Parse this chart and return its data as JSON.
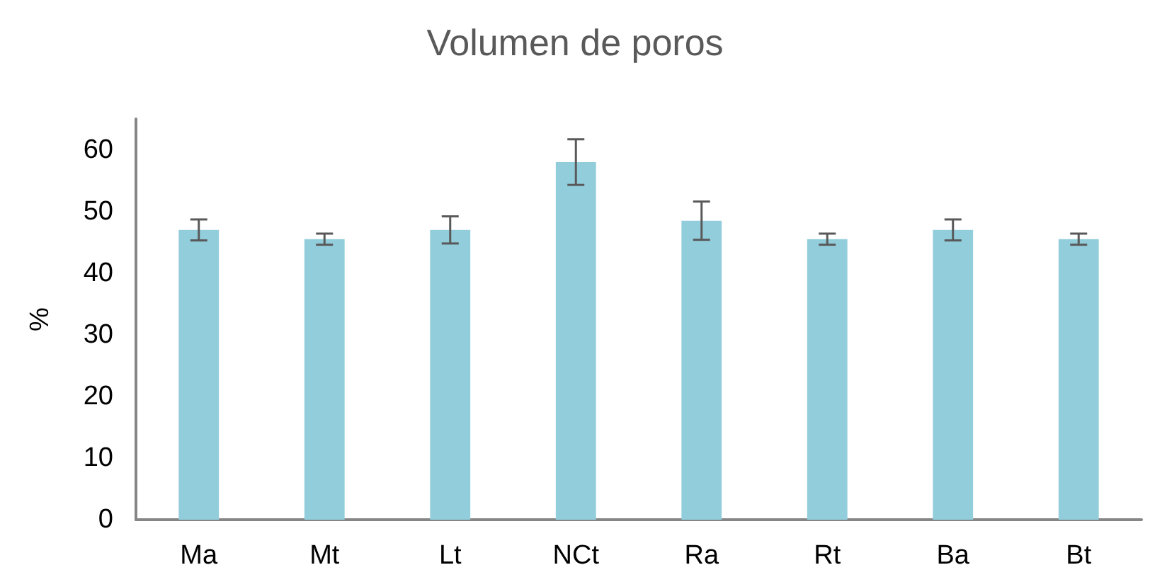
{
  "chart_data": {
    "type": "bar",
    "title": "Volumen de poros",
    "ylabel": "%",
    "categories": [
      "Ma",
      "Mt",
      "Lt",
      "NCt",
      "Ra",
      "Rt",
      "Ba",
      "Bt"
    ],
    "values": [
      47,
      45.5,
      47,
      58,
      48.5,
      45.5,
      47,
      45.5
    ],
    "errors": [
      1.7,
      0.9,
      2.2,
      3.7,
      3.1,
      0.9,
      1.7,
      0.9
    ],
    "color": "#92cddc",
    "ylim": [
      0,
      65
    ],
    "yticks": [
      0,
      10,
      20,
      30,
      40,
      50,
      60
    ],
    "grid": false
  }
}
